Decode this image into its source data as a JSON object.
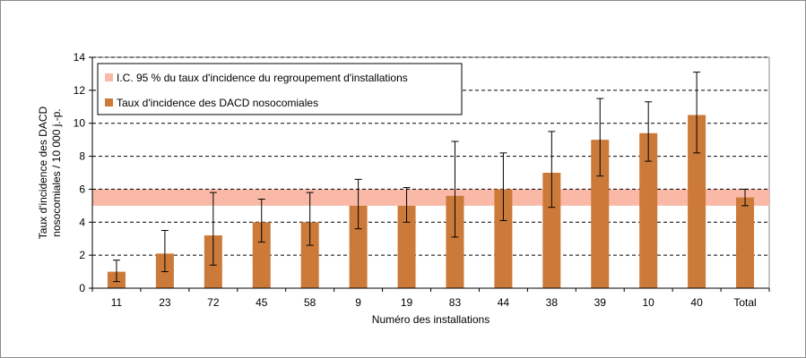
{
  "chart_data": {
    "type": "bar",
    "xlabel": "Numéro des installations",
    "ylabel_line1": "Taux d'incidence des DACD",
    "ylabel_line2": "nosocomiales / 10 000 j.-p.",
    "ylim": [
      0,
      14
    ],
    "yticks": [
      0,
      2,
      4,
      6,
      8,
      10,
      12,
      14
    ],
    "grid": "horizontal-dashed",
    "legend_position": "top-left",
    "categories": [
      "11",
      "23",
      "72",
      "45",
      "58",
      "9",
      "19",
      "83",
      "44",
      "38",
      "39",
      "10",
      "40",
      "Total"
    ],
    "series": [
      {
        "name": "Taux d'incidence des DACD nosocomiales",
        "color": "#cc7a3a",
        "values": [
          1.0,
          2.1,
          3.2,
          4.0,
          4.0,
          5.0,
          5.0,
          5.6,
          6.0,
          7.0,
          9.0,
          9.4,
          10.5,
          5.5
        ],
        "error_low": [
          0.4,
          1.0,
          1.4,
          2.8,
          2.6,
          3.6,
          4.0,
          3.1,
          4.1,
          4.9,
          6.8,
          7.7,
          8.2,
          5.0
        ],
        "error_high": [
          1.7,
          3.5,
          5.8,
          5.4,
          5.8,
          6.6,
          6.1,
          8.9,
          8.2,
          9.5,
          11.5,
          11.3,
          13.1,
          6.0
        ]
      }
    ],
    "band": {
      "name": "I.C. 95 % du taux d'incidence du regroupement d'installations",
      "color": "#f9b9a6",
      "low": 5.0,
      "high": 6.0
    }
  }
}
